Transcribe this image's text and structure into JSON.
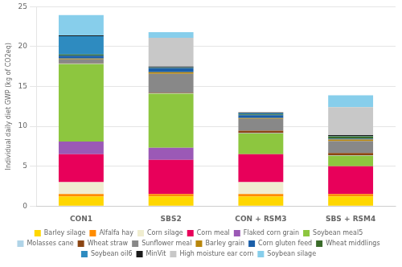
{
  "chart_data": {
    "type": "bar",
    "stacked": true,
    "ylabel": "Individual daily diet GWP (kg of CO2eq)",
    "categories": [
      "CON1",
      "SBS2",
      "CON + RSM3",
      "SBS + RSM4"
    ],
    "ylim": [
      0,
      25
    ],
    "yticks": [
      0,
      5,
      10,
      15,
      20,
      25
    ],
    "grid": true,
    "legend": "bottom",
    "series": [
      {
        "name": "Barley silage",
        "color": "#FFD700",
        "values": [
          1.2,
          1.2,
          1.2,
          1.2
        ]
      },
      {
        "name": "Alfalfa hay",
        "color": "#FF8C00",
        "values": [
          0.3,
          0.3,
          0.3,
          0.3
        ]
      },
      {
        "name": "Corn silage",
        "color": "#F0EDD0",
        "values": [
          1.5,
          0.0,
          1.5,
          0.0
        ]
      },
      {
        "name": "Corn meal",
        "color": "#E8005A",
        "values": [
          3.5,
          4.3,
          3.5,
          3.5
        ]
      },
      {
        "name": "Flaked corn grain",
        "color": "#9B59B6",
        "values": [
          1.6,
          1.5,
          0.0,
          0.0
        ]
      },
      {
        "name": "Soybean meal5",
        "color": "#8DC63F",
        "values": [
          9.7,
          6.8,
          2.6,
          1.3
        ]
      },
      {
        "name": "Molasses cane",
        "color": "#B0D4E8",
        "values": [
          0.05,
          0.05,
          0.05,
          0.05
        ]
      },
      {
        "name": "Wheat straw",
        "color": "#8B4513",
        "values": [
          0.05,
          0.05,
          0.3,
          0.3
        ]
      },
      {
        "name": "Sunflower meal",
        "color": "#888888",
        "values": [
          0.5,
          2.4,
          1.5,
          1.5
        ]
      },
      {
        "name": "Barley grain",
        "color": "#B8860B",
        "values": [
          0.1,
          0.2,
          0.1,
          0.2
        ]
      },
      {
        "name": "Corn gluten feed",
        "color": "#1A5EA8",
        "values": [
          0.35,
          0.5,
          0.35,
          0.1
        ]
      },
      {
        "name": "Wheat middlings",
        "color": "#3A6B2A",
        "values": [
          0.15,
          0.05,
          0.1,
          0.3
        ]
      },
      {
        "name": "Soybean oil6",
        "color": "#2E8BC0",
        "values": [
          2.3,
          0.05,
          0.15,
          0.05
        ]
      },
      {
        "name": "MinVit",
        "color": "#1A1A1A",
        "values": [
          0.1,
          0.1,
          0.1,
          0.1
        ]
      },
      {
        "name": "High moisture ear corn",
        "color": "#C8C8C8",
        "values": [
          0.0,
          3.6,
          0.0,
          3.5
        ]
      },
      {
        "name": "Soybean silage",
        "color": "#87CEEB",
        "values": [
          2.55,
          0.7,
          0.0,
          1.5
        ]
      }
    ]
  }
}
